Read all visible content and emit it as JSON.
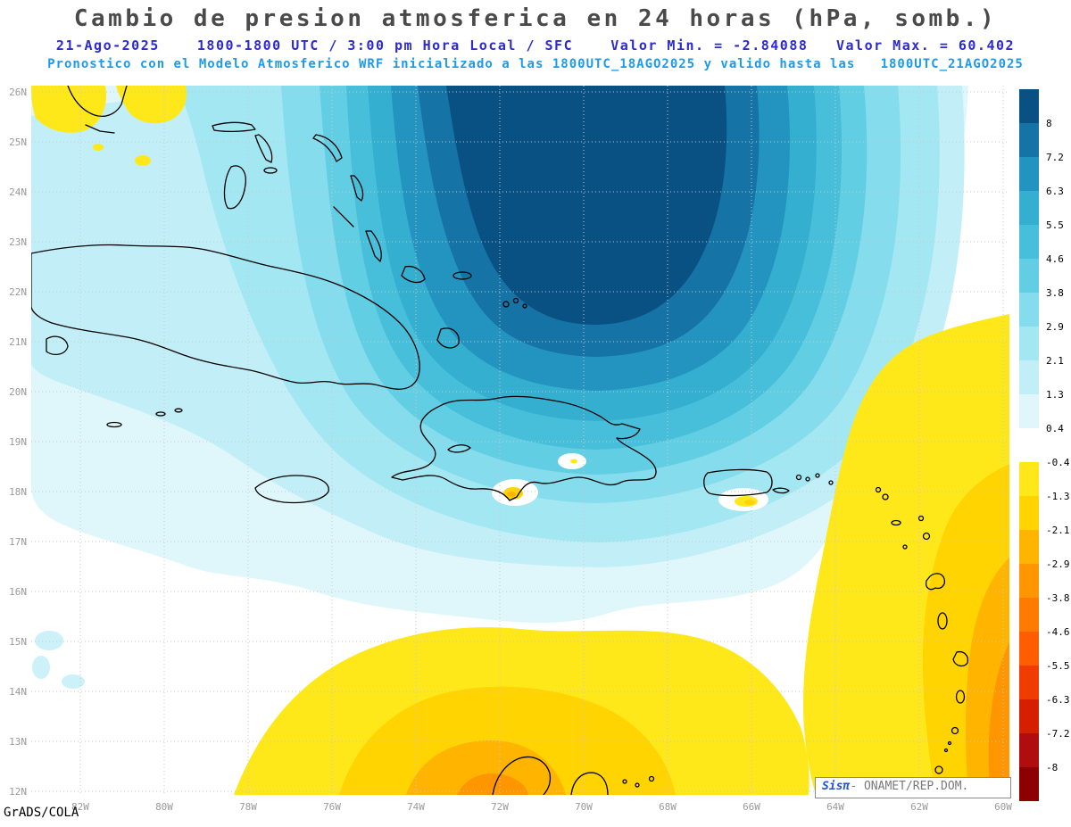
{
  "header": {
    "title": "Cambio de presion atmosferica en 24 horas (hPa, somb.)",
    "subtitle_line1": "21-Ago-2025    1800-1800 UTC / 3:00 pm Hora Local / SFC    Valor Min. = -2.84088   Valor Max. = 60.402",
    "subtitle_line2": "Pronostico con el Modelo Atmosferico WRF inicializado a las 1800UTC_18AGO2025 y valido hasta las   1800UTC_21AGO2025"
  },
  "footer": {
    "grads_credit": "GrADS/COLA",
    "branding_prefix": "Sisπ",
    "branding_suffix": "- ONAMET/REP.DOM."
  },
  "chart_data": {
    "type": "heatmap",
    "title": "Cambio de presion atmosferica en 24 horas (hPa, somb.)",
    "variable": "24-hour surface atmospheric pressure change (shaded)",
    "units": "hPa",
    "date": "21-Ago-2025",
    "time_span": "1800-1800 UTC / 3:00 pm Hora Local",
    "level": "SFC",
    "model": "WRF",
    "initialized": "1800UTC_18AGO2025",
    "valid_until": "1800UTC_21AGO2025",
    "value_min": -2.84088,
    "value_max": 60.402,
    "lat_ticks": [
      "26N",
      "25N",
      "24N",
      "23N",
      "22N",
      "21N",
      "20N",
      "19N",
      "18N",
      "17N",
      "16N",
      "15N",
      "14N",
      "13N",
      "12N"
    ],
    "lon_ticks": [
      "82W",
      "80W",
      "78W",
      "76W",
      "74W",
      "72W",
      "70W",
      "68W",
      "66W",
      "64W",
      "62W",
      "60W"
    ],
    "grid": "dotted, 1 deg latitude x 2 deg longitude",
    "legend_position": "right vertical colorbar",
    "colorbar": {
      "tick_labels": [
        "8",
        "7.2",
        "6.3",
        "5.5",
        "4.6",
        "3.8",
        "2.9",
        "2.1",
        "1.3",
        "0.4",
        "-0.4",
        "-1.3",
        "-2.1",
        "-2.9",
        "-3.8",
        "-4.6",
        "-5.5",
        "-6.3",
        "-7.2",
        "-8"
      ],
      "colors_top_to_bottom": [
        "#0a5183",
        "#1573a6",
        "#2394bf",
        "#34afd0",
        "#47bfda",
        "#62cee3",
        "#84dcec",
        "#a3e7f2",
        "#c2eff7",
        "#dff7fb",
        "#ffffff",
        "#ffe81a",
        "#ffd400",
        "#ffb400",
        "#ff9600",
        "#ff7a00",
        "#ff5e00",
        "#f03c00",
        "#d42000",
        "#b00e0e",
        "#8c0000"
      ]
    },
    "features": [
      {
        "name": "pressure-rise-maximum",
        "approx_location": "24N 71W, north of Hispaniola / Turks and Caicos",
        "description": "Closed dark-blue core of 24-h surface pressure rises exceeding +8 hPa, surrounded by concentric cyan bands weakening outward over the Bahamas, Cuba, Hispaniola, Jamaica and Puerto Rico."
      },
      {
        "name": "pressure-fall-region-south",
        "approx_location": "12N-14N between 76W and 66W",
        "description": "Yellow-to-orange 24-h pressure falls along the southern Caribbean near the ABC islands and the Guajira peninsula."
      },
      {
        "name": "pressure-fall-region-east",
        "approx_location": "east of the Lesser Antilles, 63W-60W from 12N to 19N",
        "description": "Broad yellow region with embedded orange bands of pressure falls over the tropical Atlantic east of the island arc."
      },
      {
        "name": "pressure-fall-region-northwest",
        "approx_location": "south Florida area, 83W-80W near 26N",
        "description": "Small yellow pressure-fall patches near the Florida peninsula."
      },
      {
        "name": "neutral-band",
        "approx_location": "roughly 14N-16N",
        "description": "White band (-0.4 to +0.4 hPa) separating northern pressure rises from southern pressure falls."
      }
    ]
  }
}
